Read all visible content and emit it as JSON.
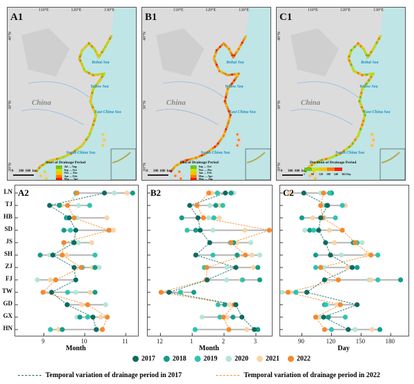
{
  "maps": [
    {
      "panel": "A1",
      "legend_title": "Start of Drainage Period",
      "legend_items": [
        "Jul — Aug",
        "Sep — Oct",
        "Nov — Dec",
        "Jan — Feb",
        "Mar — Apr"
      ],
      "legend_colors": [
        "#6fc21f",
        "#c9e400",
        "#ffc000",
        "#ff7a00",
        "#ff1a00"
      ]
    },
    {
      "panel": "B1",
      "legend_title": "End of Drainage Period",
      "legend_items": [
        "Sep — Oct",
        "Nov — Dec",
        "Jan — Feb",
        "Mar — Apr",
        "May — Jun"
      ],
      "legend_colors": [
        "#6fc21f",
        "#c9e400",
        "#ffc000",
        "#ff7a00",
        "#ff1a00"
      ]
    },
    {
      "panel": "C1",
      "legend_title": "Duration of Drainage Period",
      "legend_ticks": [
        "1",
        "60",
        "120",
        "180",
        "240",
        "365 Day"
      ],
      "legend_colors": [
        "#6fc21f",
        "#c9e400",
        "#ffc000",
        "#ff7a00",
        "#ff1a00"
      ]
    }
  ],
  "map_labels": {
    "lon": [
      "110°E",
      "120°E",
      "130°E"
    ],
    "lat": [
      "40°N",
      "30°N",
      "20°N"
    ],
    "china": "China",
    "seas": [
      "Bohai Sea",
      "Yellow Sea",
      "East China Sea",
      "South China Sea"
    ],
    "scale": [
      "0",
      "300",
      "600",
      "km"
    ]
  },
  "chart_data": [
    {
      "type": "scatter",
      "panel": "A2",
      "xlabel": "Month",
      "xticks": [
        9,
        10,
        11
      ],
      "xtick_labels": [
        "9",
        "10",
        "11"
      ],
      "xlim": [
        8.3,
        11.3
      ],
      "categories": [
        "LN",
        "TJ",
        "HB",
        "SD",
        "JS",
        "SH",
        "ZJ",
        "FJ",
        "TW",
        "GD",
        "GX",
        "HN"
      ],
      "series": [
        {
          "name": "2017",
          "values": [
            10.48,
            9.14,
            9.62,
            9.78,
            9.74,
            9.22,
            9.74,
            9.78,
            9.19,
            9.57,
            10.2,
            10.28
          ]
        },
        {
          "name": "2018",
          "values": [
            11.17,
            9.38,
            9.55,
            9.49,
            9.49,
            8.91,
            10.25,
            9.78,
            10.25,
            9.57,
            9.88,
            9.45
          ]
        },
        {
          "name": "2019",
          "values": [
            9.78,
            10.12,
            9.6,
            9.65,
            9.72,
            10.25,
            9.94,
            9.29,
            9.58,
            9.57,
            10.07,
            9.16
          ]
        },
        {
          "name": "2020",
          "values": [
            10.72,
            9.85,
            9.81,
            10.62,
            9.85,
            9.14,
            10.35,
            8.84,
            9.78,
            10.51,
            9.81,
            10.3
          ]
        },
        {
          "name": "2021",
          "values": [
            11.03,
            9.43,
            10.54,
            10.7,
            10.17,
            9.56,
            10.19,
            9.16,
            10.13,
            9.93,
            10.39,
            9.36
          ]
        },
        {
          "name": "2022",
          "values": [
            9.81,
            9.58,
            9.74,
            10.59,
            9.49,
            9.45,
            9.91,
            9.29,
            8.98,
            10.07,
            10.55,
            10.43
          ]
        }
      ]
    },
    {
      "type": "scatter",
      "panel": "B2",
      "xlabel": "Month",
      "xticks": [
        0,
        1,
        2,
        3
      ],
      "xtick_labels": [
        "12",
        "1",
        "2",
        "3"
      ],
      "xlim": [
        -0.4,
        3.5
      ],
      "categories": [
        "LN",
        "TJ",
        "HB",
        "SD",
        "JS",
        "SH",
        "ZJ",
        "FJ",
        "TW",
        "GD",
        "GX",
        "HN"
      ],
      "series": [
        {
          "name": "2017",
          "values": [
            2.04,
            0.92,
            1.18,
            1.25,
            1.55,
            1.11,
            2.37,
            1.47,
            0.27,
            2.37,
            2.56,
            2.95
          ]
        },
        {
          "name": "2018",
          "values": [
            2.22,
            1.74,
            0.67,
            1.11,
            2.3,
            2.41,
            3.06,
            3.12,
            1.05,
            2.02,
            2.28,
            3.06
          ]
        },
        {
          "name": "2019",
          "values": [
            1.79,
            1.96,
            1.68,
            0.84,
            2.2,
            1.65,
            1.38,
            2.58,
            0.63,
            1.81,
            1.87,
            1.09
          ]
        },
        {
          "name": "2020",
          "values": [
            2.3,
            1.55,
            1.51,
            1.65,
            2.84,
            3.12,
            2.08,
            2.08,
            0.65,
            2.37,
            1.31,
            3.06
          ]
        },
        {
          "name": "2021",
          "values": [
            1.61,
            1.87,
            1.85,
            2.65,
            2.41,
            2.88,
            2.92,
            2.54,
            0.67,
            2.17,
            2.1,
            2.71
          ]
        },
        {
          "name": "2022",
          "values": [
            1.52,
            1.15,
            1.35,
            3.42,
            2.22,
            2.67,
            1.46,
            1.44,
            0.02,
            2.32,
            1.98,
            2.15
          ]
        }
      ]
    },
    {
      "type": "scatter",
      "panel": "C2",
      "xlabel": "Day",
      "xticks": [
        90,
        120,
        150,
        180
      ],
      "xtick_labels": [
        "90",
        "120",
        "150",
        "180"
      ],
      "xlim": [
        68,
        198
      ],
      "categories": [
        "LN",
        "TJ",
        "HB",
        "SD",
        "JS",
        "SH",
        "ZJ",
        "FJ",
        "TW",
        "GD",
        "GX",
        "HN"
      ],
      "series": [
        {
          "name": "2017",
          "values": [
            92,
            116,
            109,
            107,
            114,
            119,
            141,
            113,
            95,
            146,
            112,
            137
          ]
        },
        {
          "name": "2018",
          "values": [
            120,
            115,
            90,
            98,
            142,
            104,
            146,
            190,
            84,
            113,
            117,
            169
          ]
        },
        {
          "name": "2019",
          "values": [
            118,
            131,
            124,
            102,
            146,
            167,
            104,
            167,
            84,
            114,
            134,
            120
          ]
        },
        {
          "name": "2020",
          "values": [
            109,
            112,
            113,
            93,
            151,
            130,
            112,
            158,
            70,
            116,
            108,
            144
          ]
        },
        {
          "name": "2021",
          "values": [
            77,
            134,
            101,
            118,
            123,
            155,
            136,
            160,
            78,
            126,
            106,
            161
          ]
        },
        {
          "name": "2022",
          "values": [
            112,
            109,
            111,
            131,
            144,
            160,
            109,
            127,
            76,
            129,
            104,
            113
          ]
        }
      ]
    }
  ],
  "year_colors": {
    "2017": "#0d6b5f",
    "2018": "#139c8a",
    "2019": "#2cc4b0",
    "2020": "#b4e6d5",
    "2021": "#f9d4a8",
    "2022": "#f5892a"
  },
  "legend": {
    "years": [
      "2017",
      "2018",
      "2019",
      "2020",
      "2021",
      "2022"
    ],
    "line_2017": "Temporal variation of drainage period in 2017",
    "line_2022": "Temporal variation of drainage period in 2022"
  }
}
